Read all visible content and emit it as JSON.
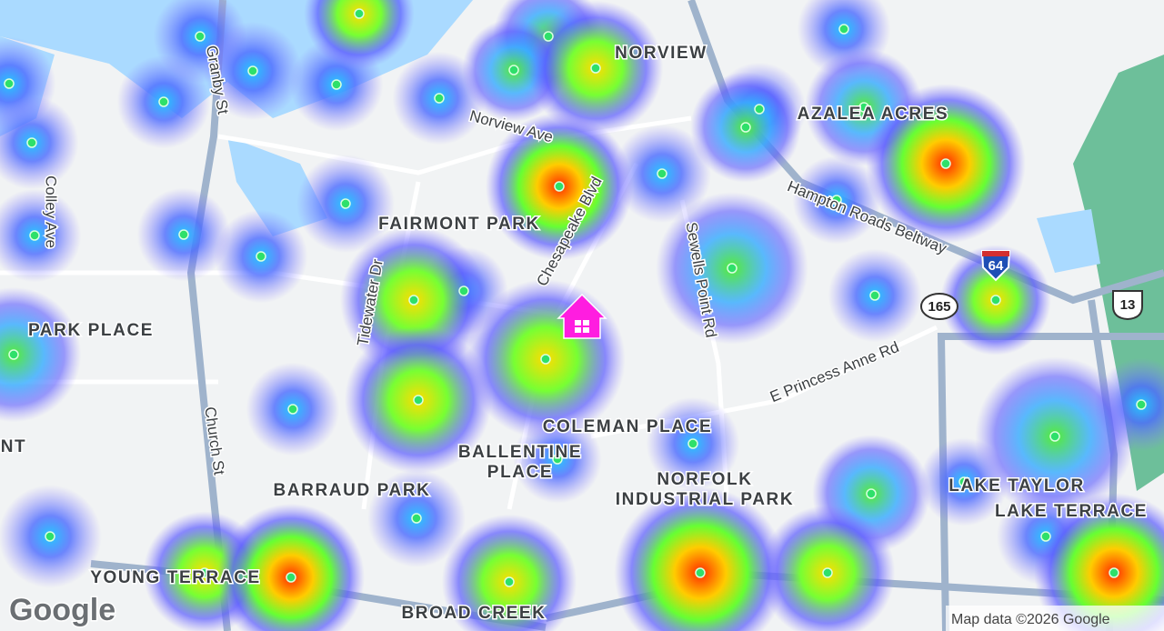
{
  "map": {
    "neighborhoods": [
      {
        "lines": [
          "NORVIEW"
        ]
      },
      {
        "lines": [
          "AZALEA ACRES"
        ]
      },
      {
        "lines": [
          "FAIRMONT PARK"
        ]
      },
      {
        "lines": [
          "PARK PLACE"
        ]
      },
      {
        "lines": [
          "COLEMAN PLACE"
        ]
      },
      {
        "lines": [
          "BALLENTINE",
          "PLACE"
        ]
      },
      {
        "lines": [
          "NORFOLK",
          "INDUSTRIAL PARK"
        ]
      },
      {
        "lines": [
          "BARRAUD PARK"
        ]
      },
      {
        "lines": [
          "GHENT"
        ]
      },
      {
        "lines": [
          "LAKE TAYLOR"
        ]
      },
      {
        "lines": [
          "LAKE TERRACE"
        ]
      },
      {
        "lines": [
          "YOUNG TERRACE"
        ]
      },
      {
        "lines": [
          "BROAD CREEK"
        ]
      }
    ],
    "roads": [
      "Granby St",
      "Colley Ave",
      "Norview Ave",
      "Chesapeake Blvd",
      "Sewells Point Rd",
      "Hampton Roads Beltway",
      "Tidewater Dr",
      "Church St",
      "E Princess Anne Rd"
    ],
    "shields": [
      "64",
      "165",
      "13"
    ],
    "attribution": "Map data ©2026 Google",
    "logo": "Google"
  }
}
